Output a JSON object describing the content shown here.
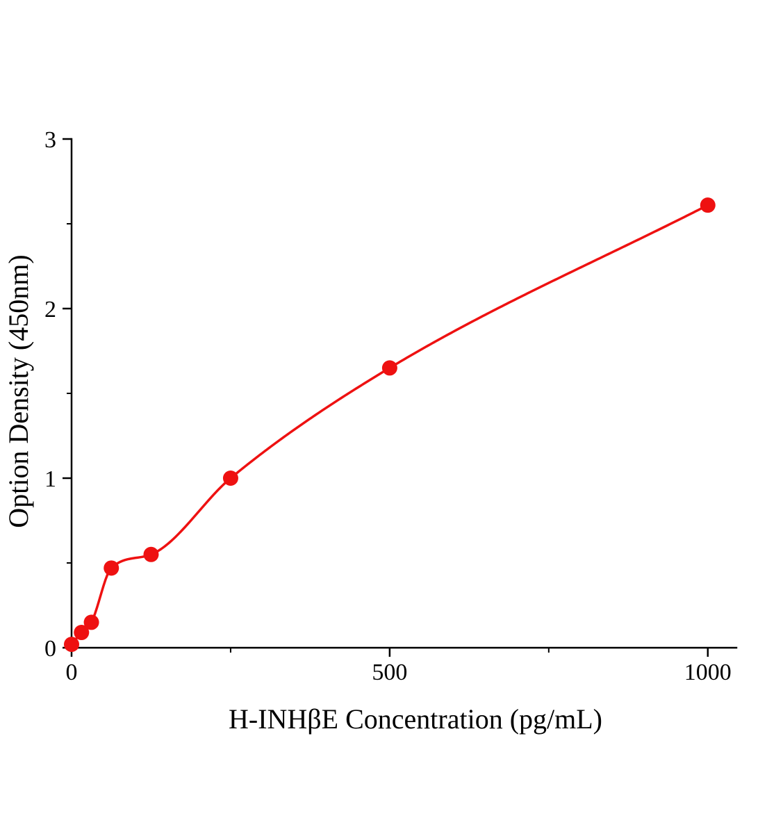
{
  "chart_data": {
    "type": "scatter",
    "title": "",
    "xlabel": "H-INHβE Concentration (pg/mL)",
    "ylabel": "Option Density (450nm)",
    "x": [
      0,
      15.6,
      31.2,
      62.5,
      125,
      250,
      500,
      1000
    ],
    "y": [
      0.02,
      0.09,
      0.15,
      0.47,
      0.55,
      1.0,
      1.65,
      2.61
    ],
    "curve": "smooth fitted line through standard points",
    "xlim": [
      0,
      1045
    ],
    "ylim": [
      0,
      3
    ],
    "x_ticks": [
      0,
      500,
      1000
    ],
    "y_ticks": [
      0,
      1,
      2,
      3
    ],
    "x_minor_ticks": [
      250,
      750
    ],
    "y_minor_ticks": [
      0.5,
      1.5,
      2.5
    ],
    "grid": false,
    "legend": "none",
    "marker_color": "#ee1111",
    "line_color": "#ee1111",
    "axis_color": "#000000"
  }
}
